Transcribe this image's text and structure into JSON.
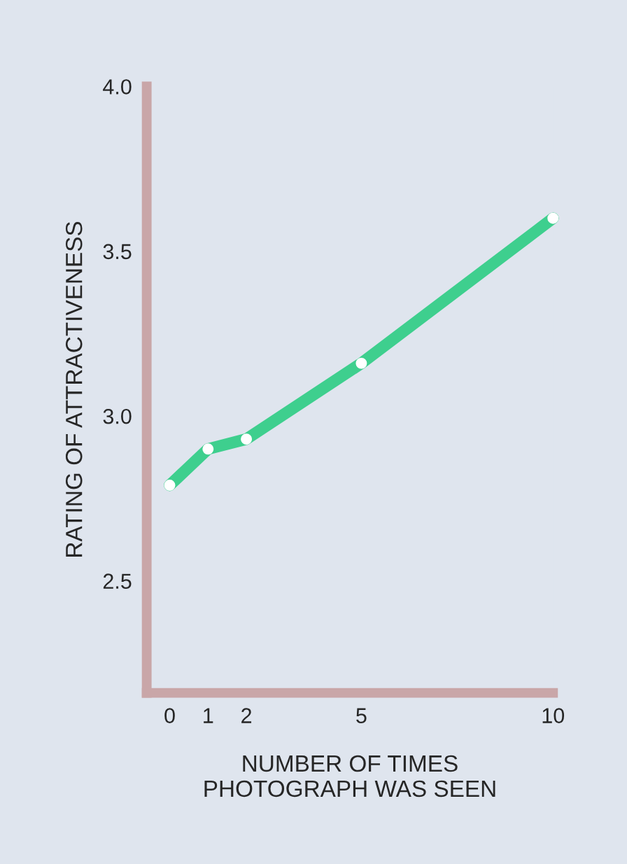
{
  "chart_data": {
    "type": "line",
    "xlabel": "NUMBER OF TIMES\nPHOTOGRAPH WAS SEEN",
    "ylabel": "RATING OF ATTRACTIVENESS",
    "x": [
      0,
      1,
      2,
      5,
      10
    ],
    "series": [
      {
        "color": "#3ecf8e",
        "values": [
          2.79,
          2.9,
          2.93,
          3.16,
          3.6
        ]
      }
    ],
    "xlim": [
      -0.6,
      10
    ],
    "xticks": [
      0,
      1,
      2,
      5,
      10
    ],
    "ylim": [
      2.16,
      4.0
    ],
    "yticks": [
      {
        "value": 2.5,
        "label": "2.5"
      },
      {
        "value": 3.0,
        "label": "3.0"
      },
      {
        "value": 3.5,
        "label": "3.5"
      },
      {
        "value": 4.0,
        "label": "4.0"
      }
    ],
    "grid": false,
    "marker": "circle",
    "line_style": "solid"
  }
}
